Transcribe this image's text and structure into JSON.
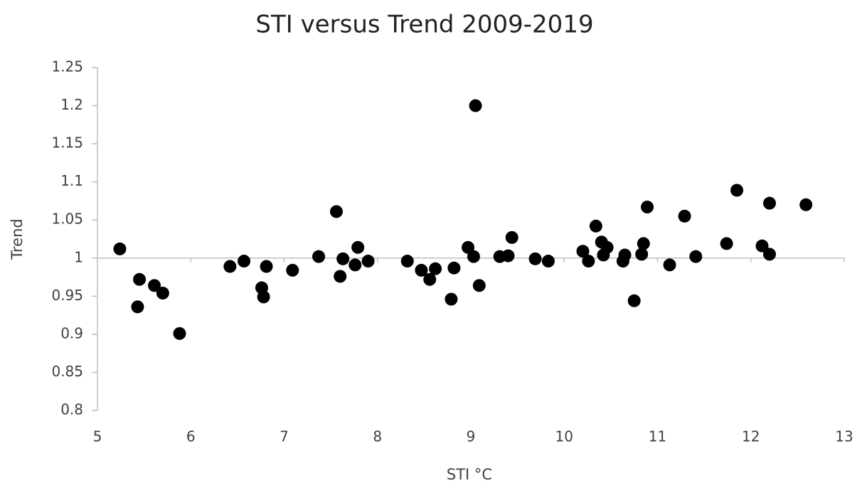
{
  "chart_data": {
    "type": "scatter",
    "title": "STI versus Trend 2009-2019",
    "x_label": "STI °C",
    "y_label": "Trend",
    "color": "#000000",
    "xlim": [
      5,
      13
    ],
    "xticks": [
      5,
      6,
      7,
      8,
      9,
      10,
      11,
      12,
      13
    ],
    "ylim": [
      0.8,
      1.25
    ],
    "yticks": [
      0.8,
      0.85,
      0.9,
      0.95,
      1,
      1.05,
      1.1,
      1.15,
      1.2,
      1.25
    ],
    "x_axis_crosses": 1,
    "grid": false,
    "x": [
      5.24,
      5.45,
      5.43,
      5.61,
      5.7,
      5.88,
      6.42,
      6.57,
      6.76,
      6.78,
      6.81,
      7.09,
      7.37,
      7.56,
      7.6,
      7.63,
      7.76,
      7.79,
      7.9,
      8.32,
      8.47,
      8.56,
      8.62,
      8.82,
      8.79,
      8.97,
      9.03,
      9.05,
      9.09,
      9.31,
      9.4,
      9.44,
      9.69,
      9.83,
      10.2,
      10.26,
      10.34,
      10.4,
      10.46,
      10.42,
      10.63,
      10.65,
      10.75,
      10.83,
      10.85,
      10.89,
      11.13,
      11.29,
      11.41,
      11.74,
      11.85,
      12.12,
      12.2,
      12.2,
      12.59
    ],
    "values": [
      1.012,
      0.972,
      0.936,
      0.964,
      0.954,
      0.901,
      0.989,
      0.996,
      0.961,
      0.949,
      0.989,
      0.984,
      1.002,
      1.061,
      0.976,
      0.999,
      0.991,
      1.014,
      0.996,
      0.996,
      0.984,
      0.972,
      0.986,
      0.987,
      0.946,
      1.014,
      1.002,
      1.2,
      0.964,
      1.002,
      1.003,
      1.027,
      0.999,
      0.996,
      1.009,
      0.996,
      1.042,
      1.021,
      1.014,
      1.004,
      0.996,
      1.004,
      0.944,
      1.005,
      1.019,
      1.067,
      0.991,
      1.055,
      1.002,
      1.019,
      1.089,
      1.016,
      1.005,
      1.072,
      1.07
    ]
  }
}
